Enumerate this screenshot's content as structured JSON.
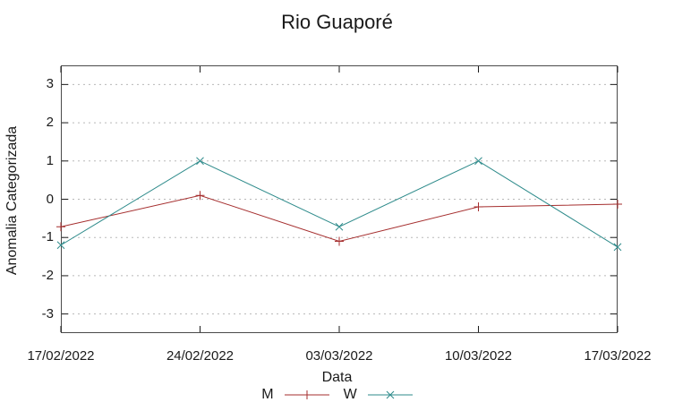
{
  "chart_data": {
    "type": "line",
    "title": "Rio Guaporé",
    "xlabel": "Data",
    "ylabel": "Anomalia Categorizada",
    "categories": [
      "17/02/2022",
      "24/02/2022",
      "03/03/2022",
      "10/03/2022",
      "17/03/2022"
    ],
    "series": [
      {
        "name": "M",
        "color": "#a52e2e",
        "marker": "plus",
        "values": [
          -0.72,
          0.1,
          -1.1,
          -0.2,
          -0.13
        ]
      },
      {
        "name": "W",
        "color": "#2e8b8b",
        "marker": "cross",
        "values": [
          -1.2,
          1.0,
          -0.72,
          1.0,
          -1.25
        ]
      }
    ],
    "ylim": [
      -3.5,
      3.5
    ],
    "yticks": [
      3,
      2,
      1,
      0,
      -1,
      -2,
      -3
    ],
    "grid": "horizontal-dotted",
    "legend_position": "bottom-center"
  },
  "styles": {
    "border_color": "#4a4a4a",
    "grid_color": "#b8b8b8",
    "tick_color": "#1a1a1a",
    "background": "#ffffff"
  }
}
